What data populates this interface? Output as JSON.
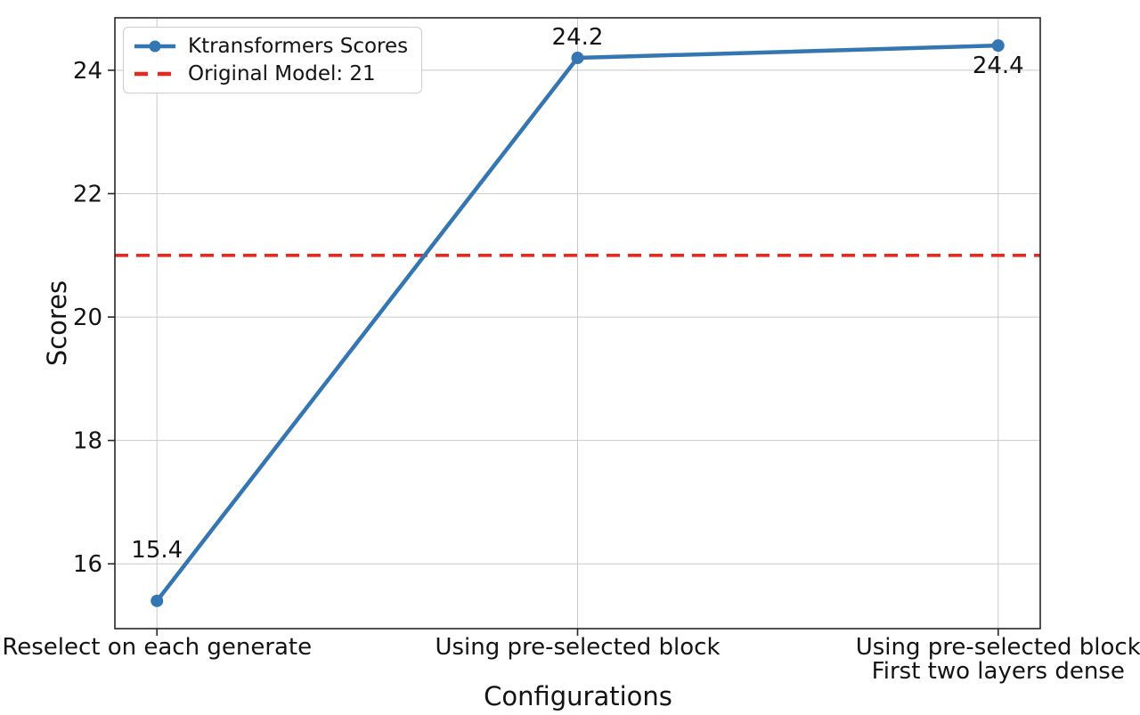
{
  "chart_data": {
    "type": "line",
    "title": "",
    "xlabel": "Configurations",
    "ylabel": "Scores",
    "categories": [
      [
        "Reselect on each generate"
      ],
      [
        "Using pre-selected block"
      ],
      [
        "Using pre-selected block",
        "First two layers dense"
      ]
    ],
    "series": [
      {
        "name": "Ktransformers Scores",
        "values": [
          15.4,
          24.2,
          24.4
        ],
        "color": "#3476b2",
        "style": "solid",
        "marker": "circle"
      }
    ],
    "point_labels": [
      "15.4",
      "24.2",
      "24.4"
    ],
    "reference_line": {
      "label": "Original Model: 21",
      "value": 21,
      "color": "#e9271d",
      "style": "dashed"
    },
    "yticks": [
      16,
      18,
      20,
      22,
      24
    ],
    "ylim": [
      14.95,
      24.85
    ],
    "grid": true,
    "legend_position": "upper left"
  },
  "legend": {
    "items": [
      {
        "label": "Ktransformers Scores",
        "swatch": "blue-line-marker-icon"
      },
      {
        "label": "Original Model: 21",
        "swatch": "red-dashed-line-icon"
      }
    ]
  },
  "colors": {
    "series_blue": "#3476b2",
    "reference_red": "#e9271d",
    "grid_gray": "#c9c9c9",
    "text": "#131313"
  }
}
